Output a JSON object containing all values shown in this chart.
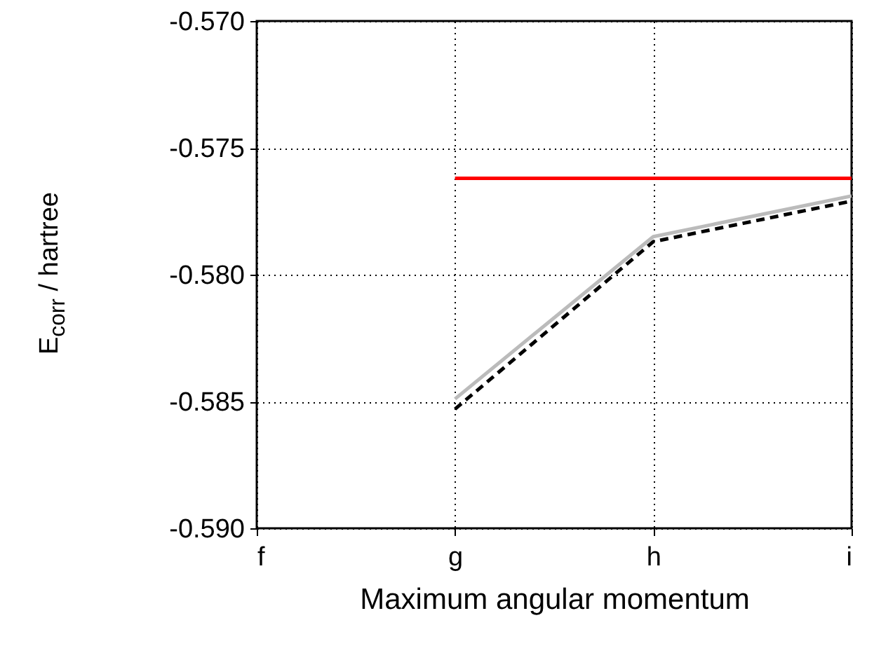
{
  "chart_data": {
    "type": "line",
    "xlabel": "Maximum angular momentum",
    "ylabel": "E$_{corr}$ / hartree",
    "categories": [
      "f",
      "g",
      "h",
      "i"
    ],
    "ylim": [
      -0.59,
      -0.57
    ],
    "yticks": [
      {
        "value": -0.59,
        "label": "-0.590"
      },
      {
        "value": -0.585,
        "label": "-0.585"
      },
      {
        "value": -0.58,
        "label": "-0.580"
      },
      {
        "value": -0.575,
        "label": "-0.575"
      },
      {
        "value": -0.57,
        "label": "-0.570"
      }
    ],
    "grid": true,
    "series": [
      {
        "color": "#ff0000",
        "line_style": "solid",
        "values": [
          null,
          -0.5762,
          -0.5762,
          -0.5762
        ]
      },
      {
        "color": "#bbbbbb",
        "line_style": "solid",
        "values": [
          null,
          -0.5849,
          -0.5785,
          -0.5769
        ]
      },
      {
        "color": "#000000",
        "line_style": "dashed",
        "values": [
          null,
          -0.5853,
          -0.5787,
          -0.5771
        ]
      }
    ]
  }
}
